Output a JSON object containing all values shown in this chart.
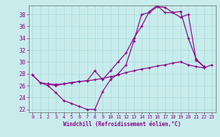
{
  "xlabel": "Windchill (Refroidissement éolien,°C)",
  "bg_color": "#c8ecec",
  "line_color": "#8b008b",
  "grid_color": "#a8d8d8",
  "xlim": [
    -0.5,
    23.5
  ],
  "ylim": [
    21.5,
    39.5
  ],
  "yticks": [
    22,
    24,
    26,
    28,
    30,
    32,
    34,
    36,
    38
  ],
  "xticks": [
    0,
    1,
    2,
    3,
    4,
    5,
    6,
    7,
    8,
    9,
    10,
    11,
    12,
    13,
    14,
    15,
    16,
    17,
    18,
    19,
    20,
    21,
    22,
    23
  ],
  "line1_x": [
    0,
    1,
    2,
    3,
    4,
    5,
    6,
    7,
    8,
    9,
    10,
    11,
    12,
    13,
    14,
    15,
    16,
    17,
    18,
    19,
    20,
    21,
    22,
    23
  ],
  "line1_y": [
    27.8,
    26.5,
    26.3,
    26.2,
    26.3,
    26.5,
    26.7,
    26.8,
    27.0,
    27.2,
    27.5,
    27.8,
    28.2,
    28.5,
    28.8,
    29.0,
    29.3,
    29.5,
    29.8,
    30.0,
    29.5,
    29.2,
    29.0,
    29.5
  ],
  "line2_x": [
    0,
    1,
    2,
    3,
    4,
    5,
    6,
    7,
    8,
    9,
    10,
    11,
    12,
    13,
    14,
    15,
    16,
    17,
    18,
    19,
    20,
    21,
    22
  ],
  "line2_y": [
    27.8,
    26.5,
    26.0,
    24.8,
    23.5,
    23.0,
    22.5,
    22.0,
    22.0,
    25.0,
    27.0,
    28.0,
    29.5,
    33.5,
    38.0,
    38.3,
    39.3,
    39.2,
    38.3,
    38.5,
    34.0,
    30.5,
    29.2
  ],
  "line3_x": [
    2,
    3,
    4,
    5,
    6,
    7,
    8,
    9,
    10,
    11,
    12,
    13,
    14,
    15,
    16,
    17,
    18,
    19,
    20,
    21,
    22
  ],
  "line3_y": [
    26.3,
    26.0,
    26.3,
    26.5,
    26.7,
    26.8,
    28.5,
    27.0,
    28.5,
    30.0,
    31.5,
    34.0,
    36.0,
    38.5,
    39.5,
    38.3,
    38.3,
    37.5,
    38.0,
    30.3,
    29.2
  ]
}
